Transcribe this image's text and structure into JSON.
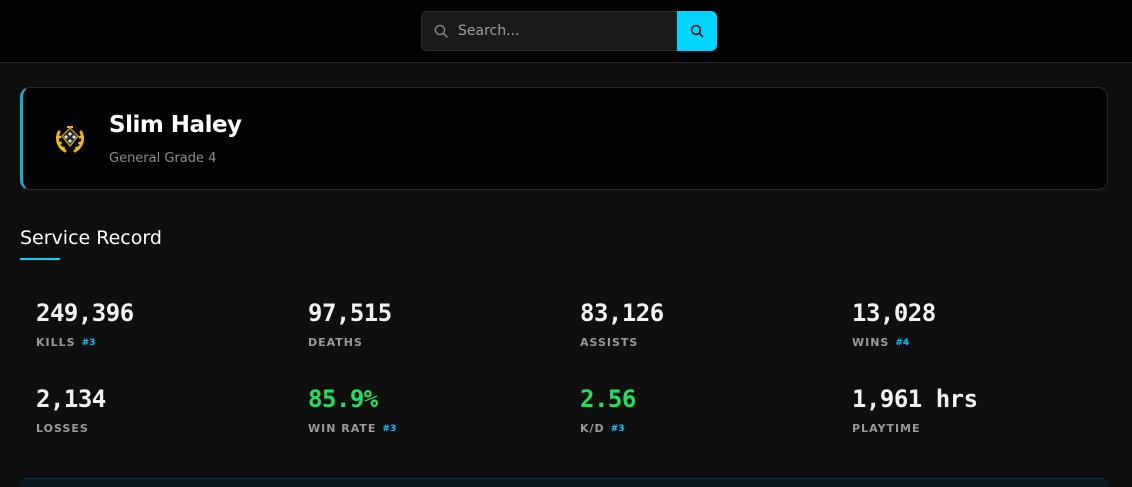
{
  "search": {
    "placeholder": "Search..."
  },
  "profile": {
    "name": "Slim Haley",
    "rank": "General Grade 4"
  },
  "section": {
    "title": "Service Record"
  },
  "stats": [
    {
      "value": "249,396",
      "label": "KILLS",
      "rank": "#3",
      "color": "#f2f2f2"
    },
    {
      "value": "97,515",
      "label": "DEATHS",
      "rank": "",
      "color": "#f2f2f2"
    },
    {
      "value": "83,126",
      "label": "ASSISTS",
      "rank": "",
      "color": "#f2f2f2"
    },
    {
      "value": "13,028",
      "label": "WINS",
      "rank": "#4",
      "color": "#f2f2f2"
    },
    {
      "value": "2,134",
      "label": "LOSSES",
      "rank": "",
      "color": "#f2f2f2"
    },
    {
      "value": "85.9%",
      "label": "WIN RATE",
      "rank": "#3",
      "color": "#21e05f"
    },
    {
      "value": "2.56",
      "label": "K/D",
      "rank": "#3",
      "color": "#21e05f"
    },
    {
      "value": "1,961 hrs",
      "label": "PLAYTIME",
      "rank": "",
      "color": "#f2f2f2"
    }
  ],
  "colors": {
    "accent": "#00d4ff",
    "positive": "#21e05f",
    "rank_emblem": "#e8b020"
  },
  "icons": {
    "search": "search-icon",
    "rank": "rank-emblem-icon"
  }
}
